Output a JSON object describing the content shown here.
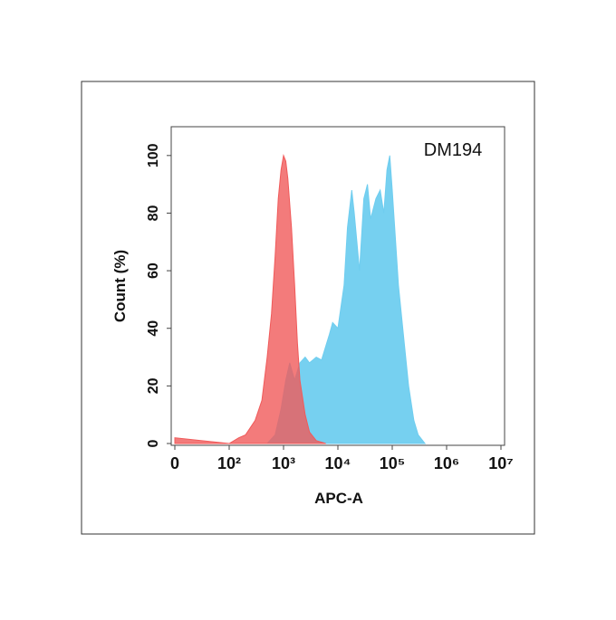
{
  "chart_data": {
    "type": "area",
    "annotation": "DM194",
    "x_label": "APC-A",
    "y_label": "Count  (%)",
    "xscale": "biexponential",
    "xlim": [
      0,
      10000000
    ],
    "xticks": [
      0,
      {
        "value": 100,
        "label": "10²"
      },
      {
        "value": 1000,
        "label": "10³"
      },
      {
        "value": 10000,
        "label": "10⁴"
      },
      {
        "value": 100000,
        "label": "10⁵"
      },
      {
        "value": 1000000,
        "label": "10⁶"
      },
      {
        "value": 10000000,
        "label": "10⁷"
      }
    ],
    "ylim": [
      0,
      110
    ],
    "yticks": [
      0,
      20,
      40,
      60,
      80,
      100
    ],
    "series": [
      {
        "color": "#6fcdef",
        "opacity": 0.95,
        "x": [
          0,
          500,
          700,
          900,
          1100,
          1300,
          1600,
          2000,
          2500,
          3000,
          4000,
          5000,
          7000,
          8000,
          10000,
          13000,
          15000,
          18000,
          20000,
          25000,
          30000,
          35000,
          40000,
          50000,
          60000,
          70000,
          80000,
          90000,
          100000,
          130000,
          160000,
          200000,
          250000,
          300000,
          400000
        ],
        "values": [
          0,
          0,
          3,
          12,
          22,
          28,
          22,
          28,
          30,
          28,
          30,
          29,
          38,
          42,
          40,
          55,
          75,
          88,
          80,
          60,
          85,
          90,
          78,
          85,
          88,
          80,
          95,
          100,
          88,
          55,
          38,
          20,
          8,
          3,
          0
        ]
      },
      {
        "color": "#f05a5a",
        "opacity": 0.8,
        "x": [
          0,
          50,
          100,
          150,
          200,
          300,
          400,
          500,
          600,
          700,
          800,
          900,
          1000,
          1100,
          1200,
          1400,
          1600,
          1800,
          2000,
          2500,
          3000,
          4000,
          6000
        ],
        "values": [
          2,
          1,
          0,
          2,
          3,
          8,
          15,
          30,
          45,
          65,
          85,
          95,
          100,
          98,
          92,
          75,
          55,
          35,
          22,
          10,
          4,
          1,
          0
        ]
      }
    ]
  }
}
